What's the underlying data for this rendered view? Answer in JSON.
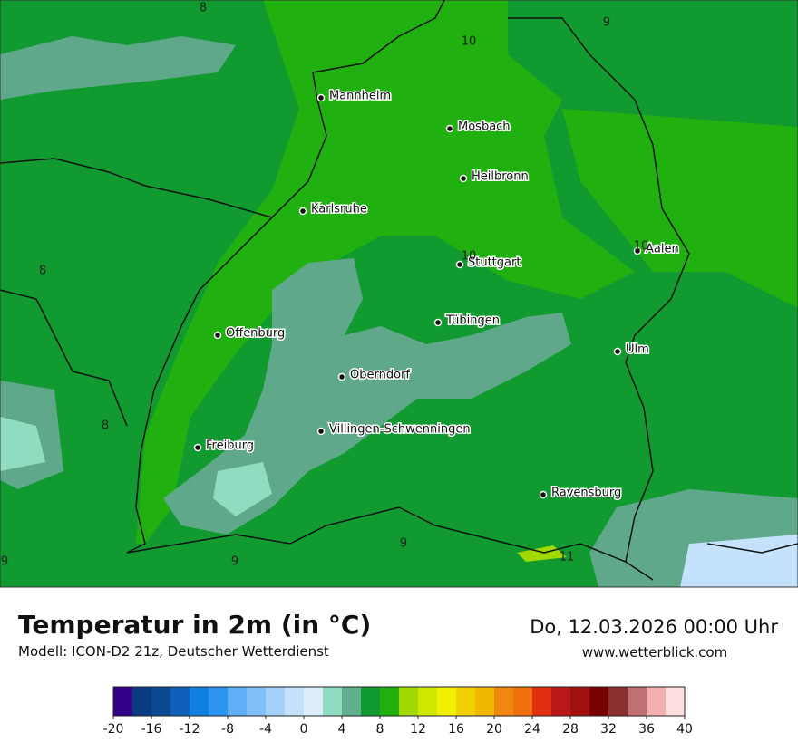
{
  "header": {
    "title": "Temperatur in 2m (in °C)",
    "model": "Modell: ICON-D2 21z, Deutscher Wetterdienst",
    "valid": "Do, 12.03.2026 00:00 Uhr",
    "website": "www.wetterblick.com"
  },
  "cities": [
    "Mannheim",
    "Mosbach",
    "Heilbronn",
    "Karlsruhe",
    "Stuttgart",
    "Aalen",
    "Tübingen",
    "Offenburg",
    "Ulm",
    "Oberndorf",
    "Villingen-Schwenningen",
    "Freiburg",
    "Ravensburg"
  ],
  "isolines": [
    "8",
    "9",
    "10",
    "8",
    "10",
    "8",
    "10",
    "9",
    "9",
    "9",
    "11"
  ],
  "colorbar": {
    "ticks": [
      -20,
      -16,
      -12,
      -8,
      -4,
      0,
      4,
      8,
      12,
      16,
      20,
      24,
      28,
      32,
      36,
      40
    ],
    "colors": [
      "#33008a",
      "#0a3a80",
      "#0a4a90",
      "#0f60b8",
      "#1080e0",
      "#2a94f0",
      "#60b0f8",
      "#80c0f8",
      "#a4d2f8",
      "#c4e2fc",
      "#dceefc",
      "#90dcc0",
      "#60b090",
      "#109a30",
      "#20b010",
      "#a0d800",
      "#d0e800",
      "#f0f000",
      "#f0d000",
      "#f0b800",
      "#f08810",
      "#f07010",
      "#e03010",
      "#b81818",
      "#a01010",
      "#780000",
      "#8a3030",
      "#c07070",
      "#f4b0b0",
      "#ffe0e0"
    ]
  }
}
